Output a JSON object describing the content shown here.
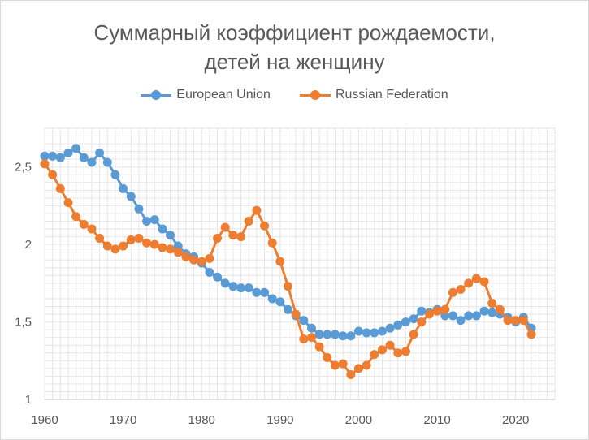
{
  "chart_data": {
    "type": "line",
    "title_line1": "Суммарный коэффициент рождаемости,",
    "title_line2": "детей на женщину",
    "xlabel": "",
    "ylabel": "",
    "x": [
      1960,
      1961,
      1962,
      1963,
      1964,
      1965,
      1966,
      1967,
      1968,
      1969,
      1970,
      1971,
      1972,
      1973,
      1974,
      1975,
      1976,
      1977,
      1978,
      1979,
      1980,
      1981,
      1982,
      1983,
      1984,
      1985,
      1986,
      1987,
      1988,
      1989,
      1990,
      1991,
      1992,
      1993,
      1994,
      1995,
      1996,
      1997,
      1998,
      1999,
      2000,
      2001,
      2002,
      2003,
      2004,
      2005,
      2006,
      2007,
      2008,
      2009,
      2010,
      2011,
      2012,
      2013,
      2014,
      2015,
      2016,
      2017,
      2018,
      2019,
      2020,
      2021,
      2022
    ],
    "xlim": [
      1960,
      2025
    ],
    "ylim": [
      1,
      2.75
    ],
    "x_ticks": [
      {
        "value": 1960,
        "label": "1960"
      },
      {
        "value": 1970,
        "label": "1970"
      },
      {
        "value": 1980,
        "label": "1980"
      },
      {
        "value": 1990,
        "label": "1990"
      },
      {
        "value": 2000,
        "label": "2000"
      },
      {
        "value": 2010,
        "label": "2010"
      },
      {
        "value": 2020,
        "label": "2020"
      }
    ],
    "y_ticks": [
      {
        "value": 1,
        "label": "1"
      },
      {
        "value": 1.5,
        "label": "1,5"
      },
      {
        "value": 2,
        "label": "2"
      },
      {
        "value": 2.5,
        "label": "2,5"
      }
    ],
    "grid": true,
    "legend_position": "top",
    "series": [
      {
        "name": "European Union",
        "color": "#5b9bd5",
        "values": [
          2.57,
          2.57,
          2.56,
          2.59,
          2.62,
          2.56,
          2.53,
          2.59,
          2.53,
          2.45,
          2.36,
          2.31,
          2.23,
          2.15,
          2.16,
          2.1,
          2.06,
          1.99,
          1.94,
          1.92,
          1.88,
          1.82,
          1.79,
          1.75,
          1.73,
          1.72,
          1.72,
          1.69,
          1.69,
          1.65,
          1.63,
          1.58,
          1.54,
          1.51,
          1.46,
          1.42,
          1.42,
          1.42,
          1.41,
          1.41,
          1.44,
          1.43,
          1.43,
          1.44,
          1.46,
          1.48,
          1.5,
          1.52,
          1.57,
          1.56,
          1.58,
          1.54,
          1.54,
          1.51,
          1.54,
          1.54,
          1.57,
          1.56,
          1.55,
          1.53,
          1.5,
          1.53,
          1.46
        ]
      },
      {
        "name": "Russian Federation",
        "color": "#ed7d31",
        "values": [
          2.52,
          2.45,
          2.36,
          2.27,
          2.18,
          2.13,
          2.1,
          2.04,
          1.99,
          1.97,
          1.99,
          2.03,
          2.04,
          2.01,
          2.0,
          1.98,
          1.97,
          1.95,
          1.92,
          1.9,
          1.89,
          1.91,
          2.04,
          2.11,
          2.06,
          2.05,
          2.15,
          2.22,
          2.12,
          2.01,
          1.89,
          1.73,
          1.55,
          1.39,
          1.4,
          1.34,
          1.27,
          1.22,
          1.23,
          1.16,
          1.2,
          1.22,
          1.29,
          1.32,
          1.35,
          1.3,
          1.31,
          1.42,
          1.5,
          1.55,
          1.57,
          1.58,
          1.69,
          1.71,
          1.75,
          1.78,
          1.76,
          1.62,
          1.58,
          1.51,
          1.51,
          1.51,
          1.42
        ]
      }
    ]
  }
}
